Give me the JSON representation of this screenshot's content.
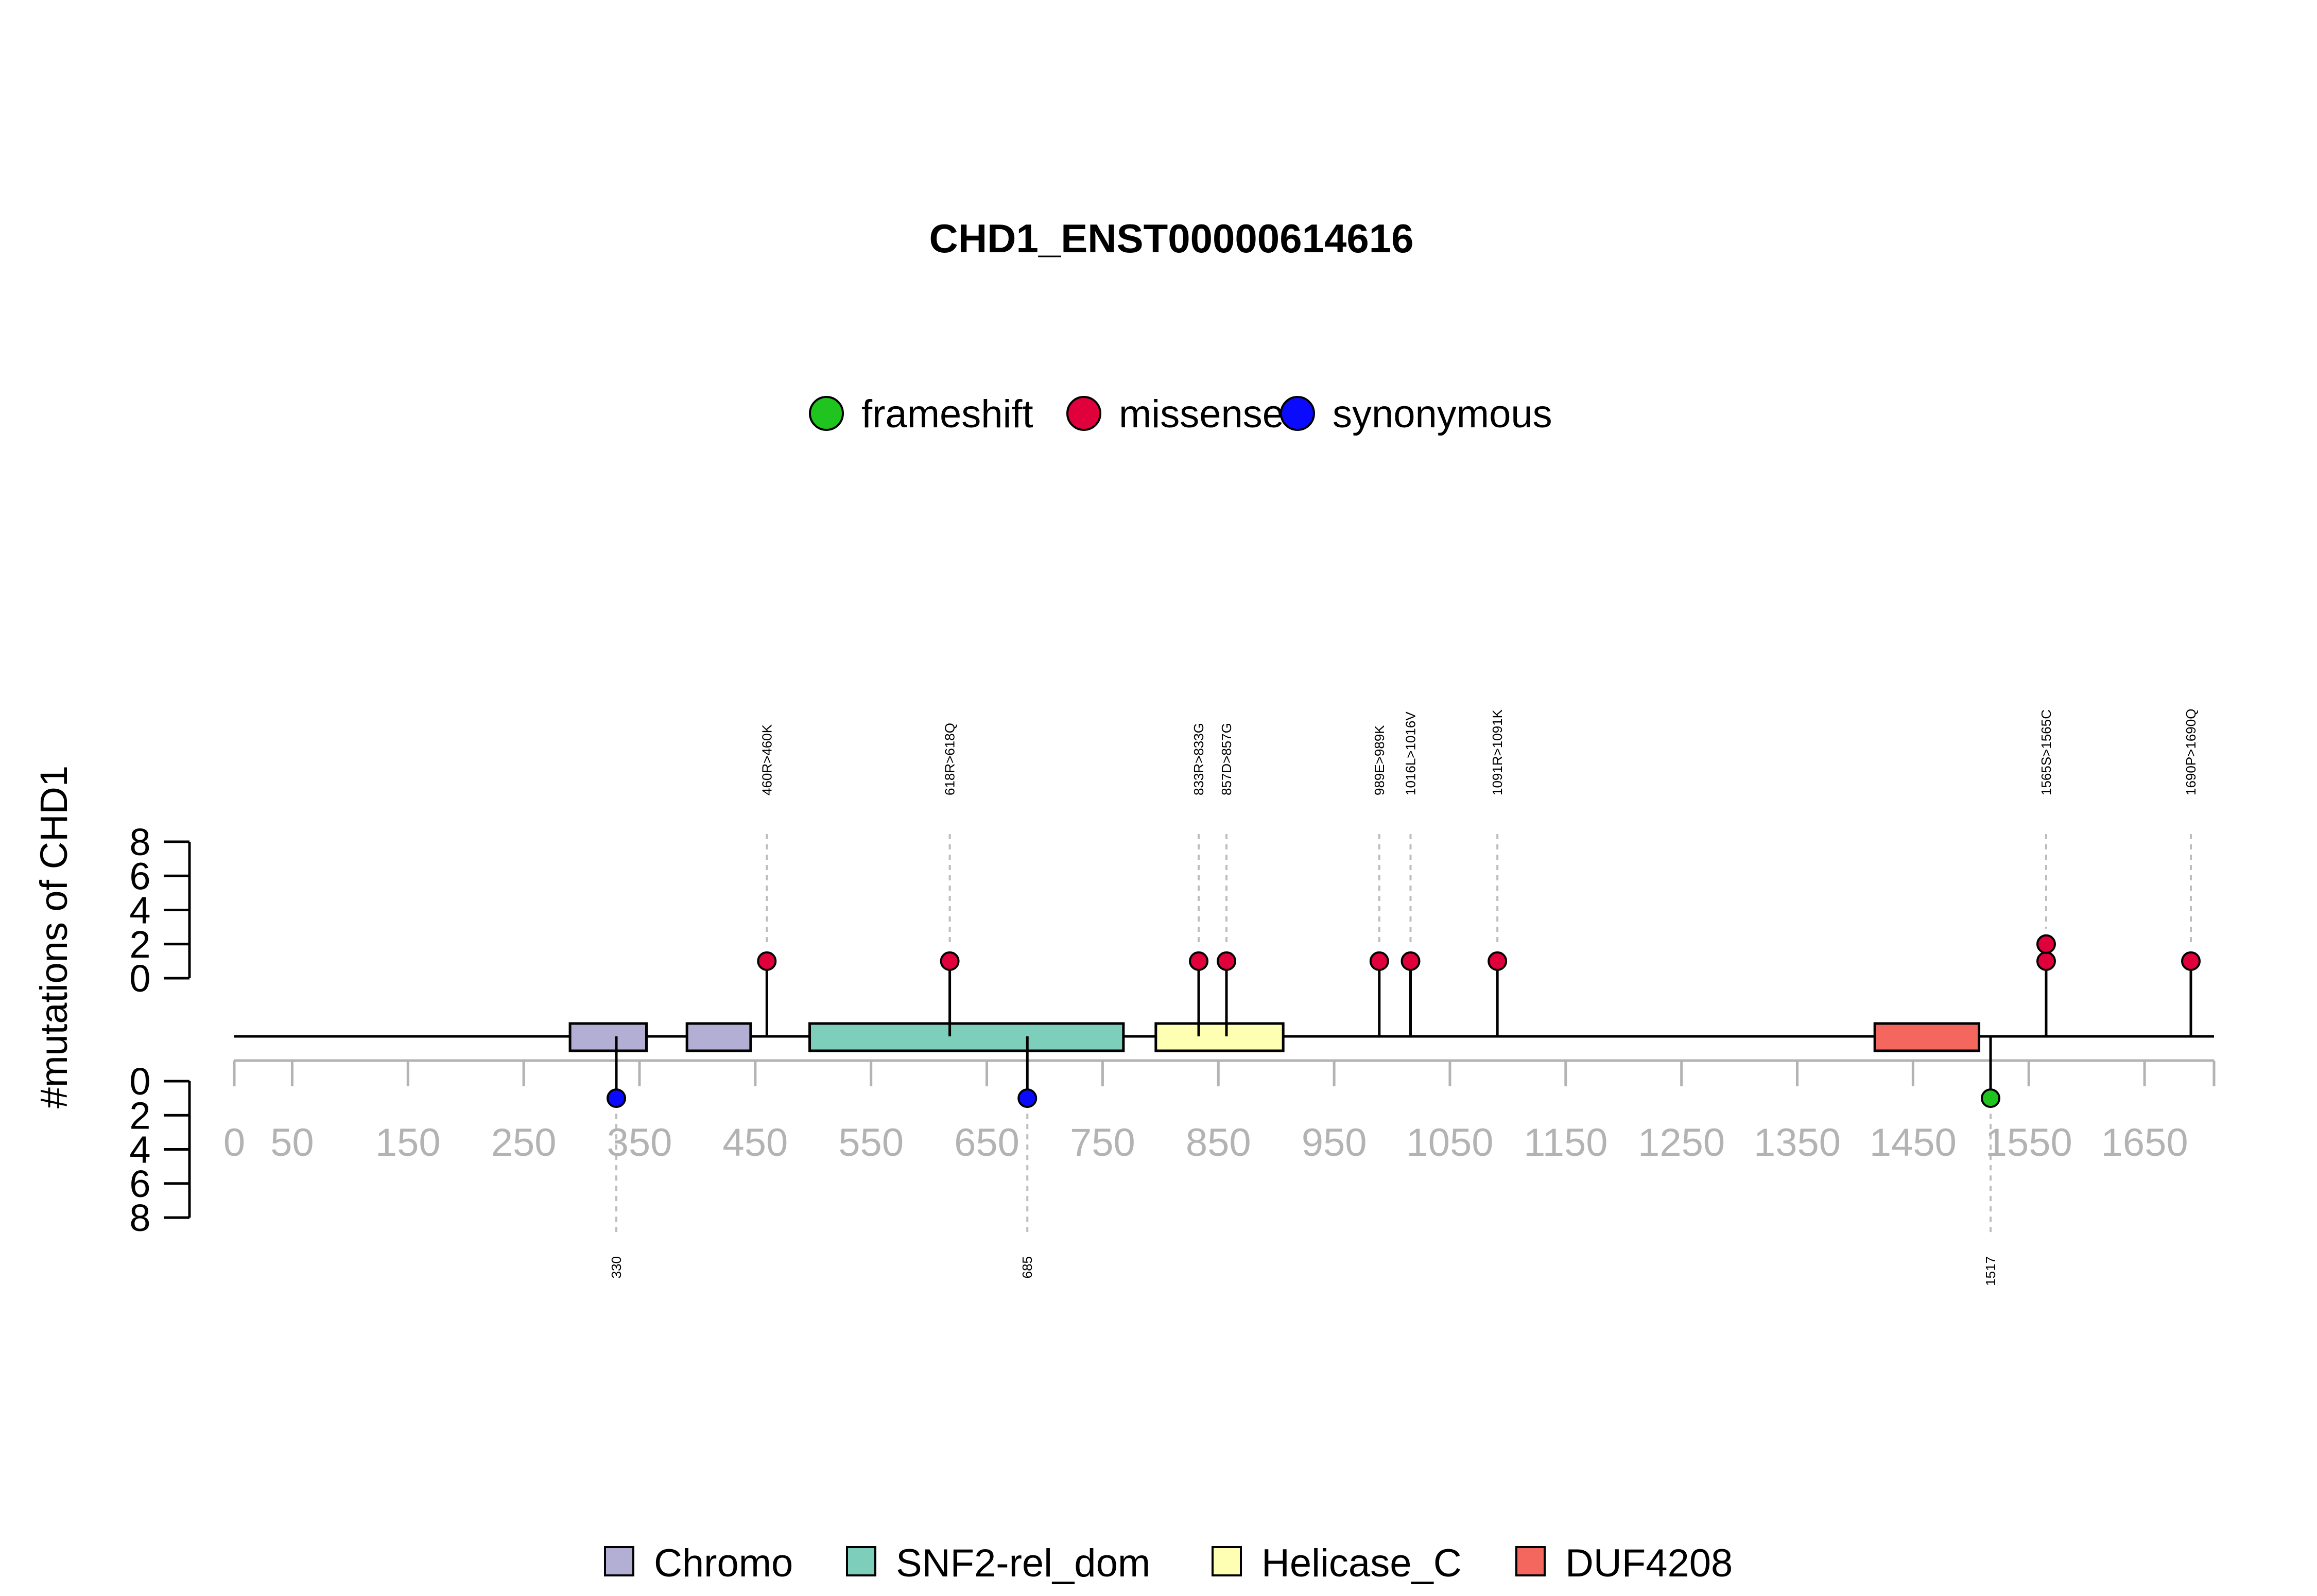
{
  "chart_data": {
    "type": "lollipop",
    "title": "CHD1_ENST00000614616",
    "ylabel": "#mutations of CHD1",
    "xlim": [
      0,
      1710
    ],
    "ylim": [
      0,
      8
    ],
    "y_ticks": [
      0,
      2,
      4,
      6,
      8
    ],
    "x_ticks": [
      0,
      50,
      150,
      250,
      350,
      450,
      550,
      650,
      750,
      850,
      950,
      1050,
      1150,
      1250,
      1350,
      1450,
      1550,
      1650
    ],
    "legend_mutation_types": [
      {
        "name": "frameshift",
        "color": "#1fc41f"
      },
      {
        "name": "missense",
        "color": "#e0003c"
      },
      {
        "name": "synonymous",
        "color": "#0a0aff"
      }
    ],
    "legend_domains": [
      {
        "name": "Chromo",
        "color": "#b3aed4"
      },
      {
        "name": "SNF2-rel_dom",
        "color": "#7dcebb"
      },
      {
        "name": "Helicase_C",
        "color": "#ffffb3"
      },
      {
        "name": "DUF4208",
        "color": "#f4675f"
      }
    ],
    "domains": [
      {
        "name": "Chromo",
        "start": 290,
        "end": 356
      },
      {
        "name": "Chromo",
        "start": 391,
        "end": 446
      },
      {
        "name": "SNF2-rel_dom",
        "start": 497,
        "end": 768
      },
      {
        "name": "Helicase_C",
        "start": 796,
        "end": 906
      },
      {
        "name": "DUF4208",
        "start": 1417,
        "end": 1507
      }
    ],
    "mutations_above": [
      {
        "position": 460,
        "count": 1,
        "type": "missense",
        "label": "460R>460K"
      },
      {
        "position": 618,
        "count": 1,
        "type": "missense",
        "label": "618R>618Q"
      },
      {
        "position": 833,
        "count": 1,
        "type": "missense",
        "label": "833R>833G"
      },
      {
        "position": 857,
        "count": 1,
        "type": "missense",
        "label": "857D>857G"
      },
      {
        "position": 989,
        "count": 1,
        "type": "missense",
        "label": "989E>989K"
      },
      {
        "position": 1016,
        "count": 1,
        "type": "missense",
        "label": "1016L>1016V"
      },
      {
        "position": 1091,
        "count": 1,
        "type": "missense",
        "label": "1091R>1091K"
      },
      {
        "position": 1565,
        "count": 2,
        "type": "missense",
        "label": "1565S>1565C"
      },
      {
        "position": 1690,
        "count": 1,
        "type": "missense",
        "label": "1690P>1690Q"
      }
    ],
    "mutations_below": [
      {
        "position": 330,
        "count": 1,
        "type": "synonymous",
        "label": "330"
      },
      {
        "position": 685,
        "count": 1,
        "type": "synonymous",
        "label": "685"
      },
      {
        "position": 1517,
        "count": 1,
        "type": "frameshift",
        "label": "1517"
      }
    ]
  }
}
